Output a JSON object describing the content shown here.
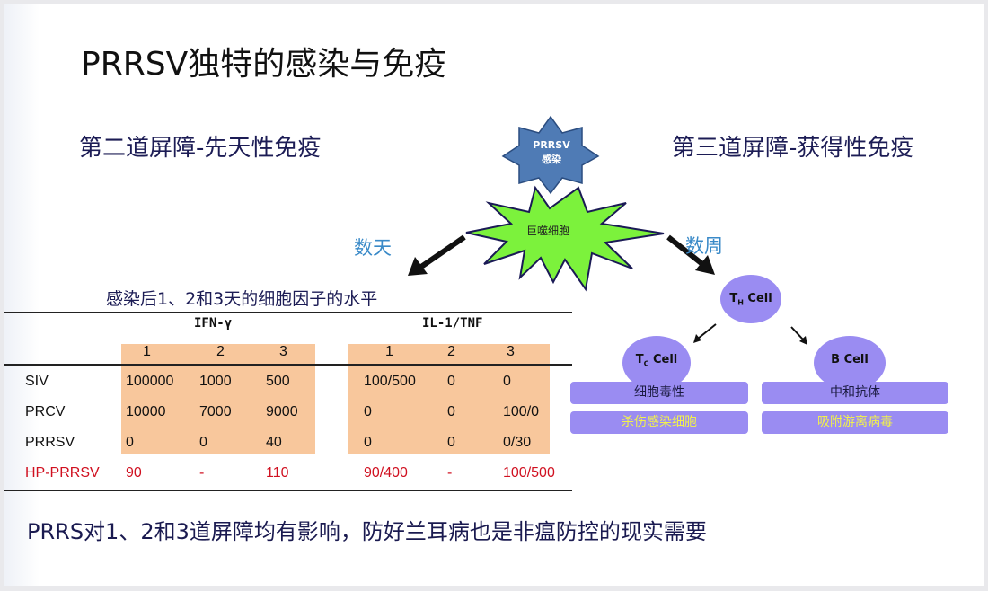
{
  "title": "PRRSV独特的感染与免疫",
  "left_heading": "第二道屏障-先天性免疫",
  "right_heading": "第三道屏障-获得性免疫",
  "diagram": {
    "infection_label": "PRRSV感染",
    "macrophage_label": "巨噬细胞",
    "days_label": "数天",
    "weeks_label": "数周",
    "th_cell": {
      "main": "T",
      "sub": "H",
      "rest": " Cell"
    },
    "tc_cell": {
      "main": "T",
      "sub": "C",
      "rest": " Cell"
    },
    "b_cell": "B Cell",
    "tc_boxes": [
      "细胞毒性",
      "杀伤感染细胞"
    ],
    "b_boxes": [
      "中和抗体",
      "吸附游离病毒"
    ],
    "colors": {
      "infection": "#4f7bb5",
      "macrophage": "#7cf23c",
      "cell": "#9a8cf2",
      "highlight_text": "#f2f24a",
      "table_fill": "#f8c79c",
      "hp_row": "#d01020"
    }
  },
  "table": {
    "caption": "感染后1、2和3天的细胞因子的水平",
    "groups": [
      "IFN-γ",
      "IL-1/TNF"
    ],
    "days": [
      "1",
      "2",
      "3"
    ],
    "rows": [
      {
        "label": "SIV",
        "ifn": [
          "100000",
          "1000",
          "500"
        ],
        "il": [
          "100/500",
          "0",
          "0"
        ]
      },
      {
        "label": "PRCV",
        "ifn": [
          "10000",
          "7000",
          "9000"
        ],
        "il": [
          "0",
          "0",
          "100/0"
        ]
      },
      {
        "label": "PRRSV",
        "ifn": [
          "0",
          "0",
          "40"
        ],
        "il": [
          "0",
          "0",
          "0/30"
        ]
      },
      {
        "label": "HP-PRRSV",
        "ifn": [
          "90",
          "-",
          "110"
        ],
        "il": [
          "90/400",
          "-",
          "100/500"
        ]
      }
    ]
  },
  "conclusion": "PRRS对1、2和3道屏障均有影响，防好兰耳病也是非瘟防控的现实需要"
}
